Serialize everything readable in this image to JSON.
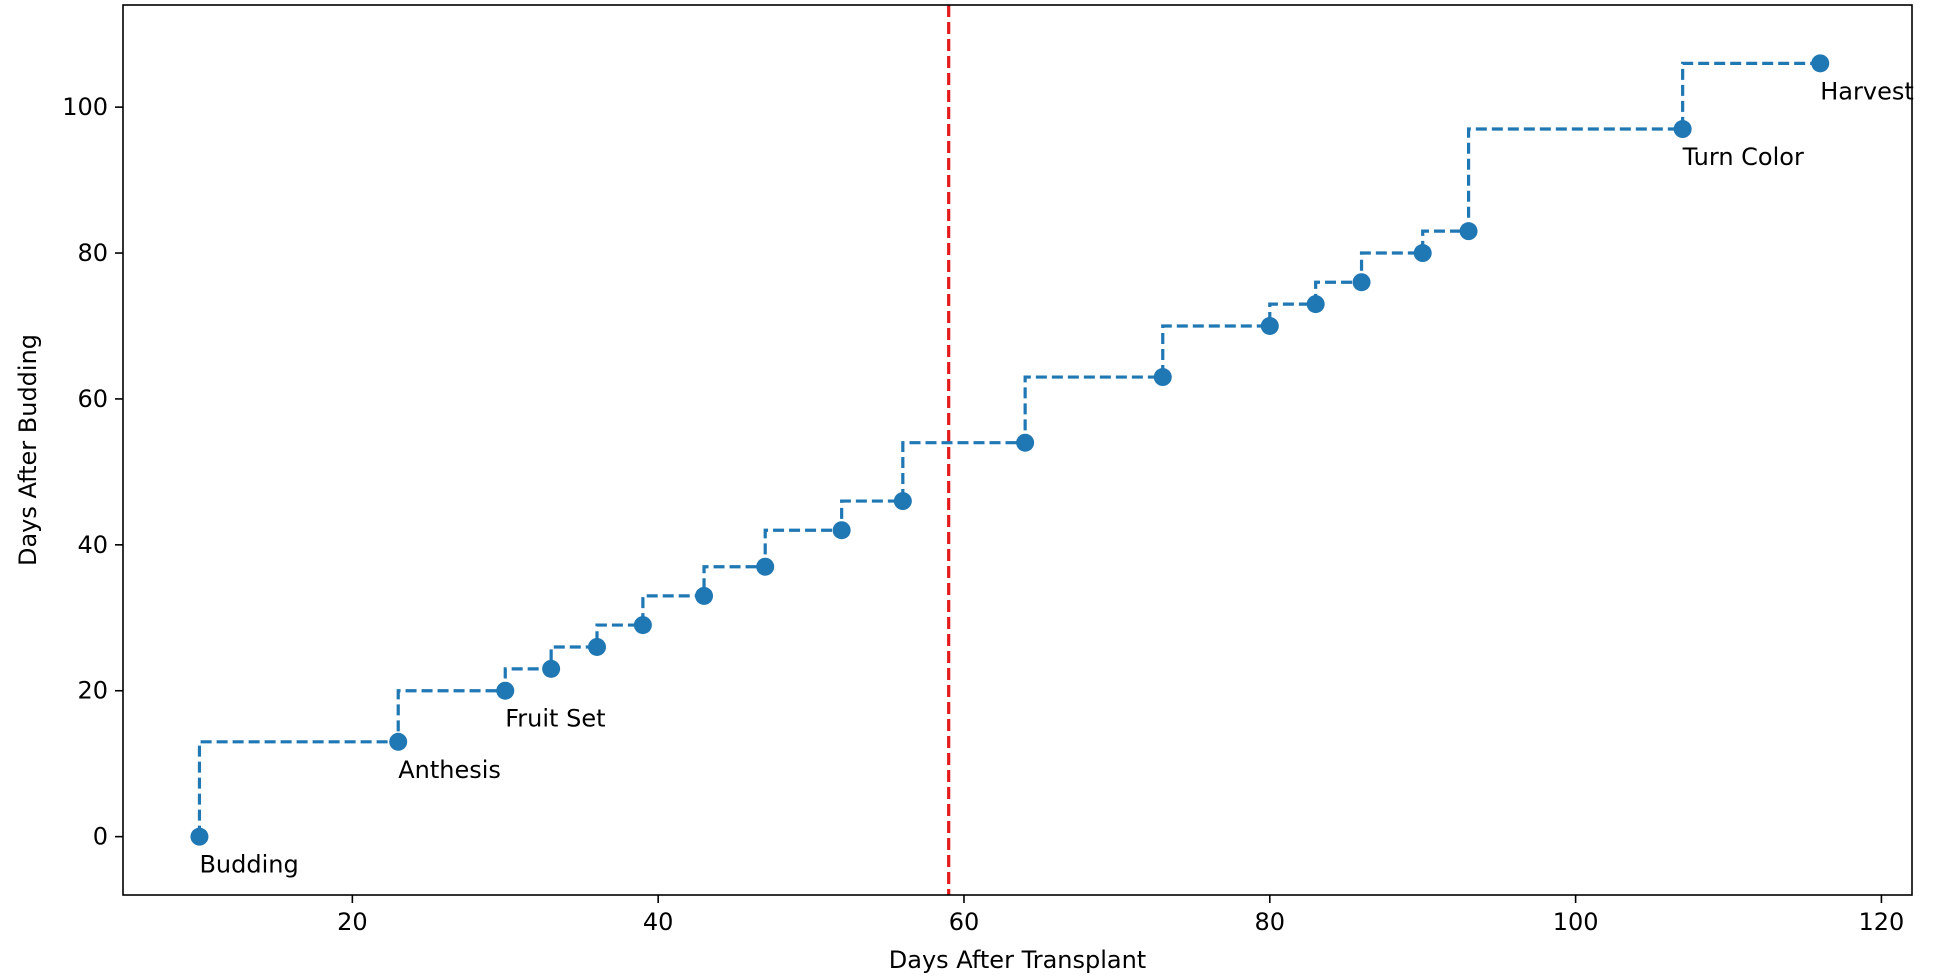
{
  "chart_data": {
    "type": "line",
    "title": "",
    "xlabel": "Days After Transplant",
    "ylabel": "Days After Budding",
    "xlim": [
      5,
      122
    ],
    "ylim": [
      -8,
      114
    ],
    "xticks": [
      20,
      40,
      60,
      80,
      100,
      120
    ],
    "yticks": [
      0,
      20,
      40,
      60,
      80,
      100
    ],
    "grid": false,
    "step": "pre",
    "line_style": "dashed",
    "series_color": "#1f77b4",
    "x": [
      10,
      23,
      30,
      33,
      36,
      39,
      43,
      47,
      52,
      56,
      64,
      73,
      80,
      83,
      86,
      90,
      93,
      107,
      116
    ],
    "y": [
      0,
      13,
      20,
      23,
      26,
      29,
      33,
      37,
      42,
      46,
      54,
      63,
      70,
      73,
      76,
      80,
      83,
      97,
      106
    ],
    "vline": {
      "x": 59,
      "color": "#e41a1c",
      "style": "dashed"
    },
    "annotations": [
      {
        "x": 10,
        "y": 0,
        "text": "Budding"
      },
      {
        "x": 23,
        "y": 13,
        "text": "Anthesis"
      },
      {
        "x": 30,
        "y": 20,
        "text": "Fruit Set"
      },
      {
        "x": 107,
        "y": 97,
        "text": "Turn Color"
      },
      {
        "x": 116,
        "y": 106,
        "text": "Harvest"
      }
    ]
  }
}
